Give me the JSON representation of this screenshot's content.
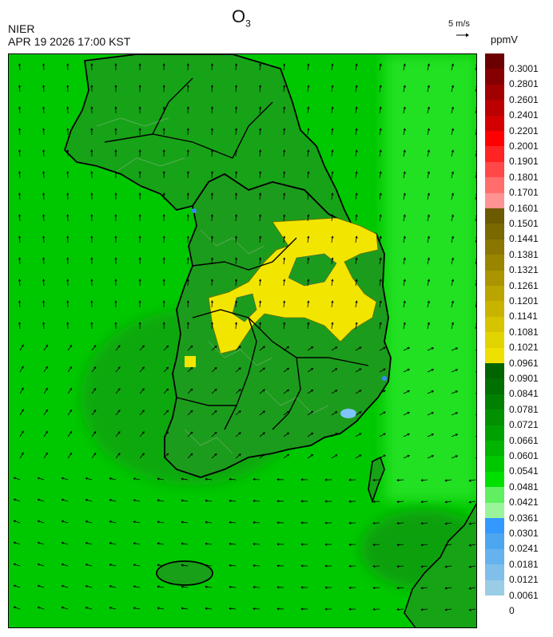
{
  "header": {
    "title_main": "O",
    "title_sub": "3",
    "agency": "NIER",
    "timestamp": "APR 19 2026 17:00 KST",
    "wind_reference": "5 m/s",
    "unit": "ppmV"
  },
  "legend": {
    "bins": [
      {
        "label": "0.3001",
        "color": "#6b0000"
      },
      {
        "label": "0.2801",
        "color": "#850000"
      },
      {
        "label": "0.2601",
        "color": "#a00000"
      },
      {
        "label": "0.2401",
        "color": "#ba0000"
      },
      {
        "label": "0.2201",
        "color": "#d40000"
      },
      {
        "label": "0.2001",
        "color": "#ff0000"
      },
      {
        "label": "0.1901",
        "color": "#ff2424"
      },
      {
        "label": "0.1801",
        "color": "#ff4848"
      },
      {
        "label": "0.1701",
        "color": "#ff6d6d"
      },
      {
        "label": "0.1601",
        "color": "#ff9292"
      },
      {
        "label": "0.1501",
        "color": "#6b5a00"
      },
      {
        "label": "0.1441",
        "color": "#7a6800"
      },
      {
        "label": "0.1381",
        "color": "#8a7600"
      },
      {
        "label": "0.1321",
        "color": "#9a8500"
      },
      {
        "label": "0.1261",
        "color": "#aa9400"
      },
      {
        "label": "0.1201",
        "color": "#baa400"
      },
      {
        "label": "0.1141",
        "color": "#c8b400"
      },
      {
        "label": "0.1081",
        "color": "#d6c400"
      },
      {
        "label": "0.1021",
        "color": "#e2d400"
      },
      {
        "label": "0.0961",
        "color": "#eee000"
      },
      {
        "label": "0.0901",
        "color": "#006400"
      },
      {
        "label": "0.0841",
        "color": "#007000"
      },
      {
        "label": "0.0781",
        "color": "#008000"
      },
      {
        "label": "0.0721",
        "color": "#009000"
      },
      {
        "label": "0.0661",
        "color": "#00a000"
      },
      {
        "label": "0.0601",
        "color": "#00b400"
      },
      {
        "label": "0.0541",
        "color": "#00c800"
      },
      {
        "label": "0.0481",
        "color": "#00e000"
      },
      {
        "label": "0.0421",
        "color": "#60ef60"
      },
      {
        "label": "0.0361",
        "color": "#9af59a"
      },
      {
        "label": "0.0301",
        "color": "#3399ff"
      },
      {
        "label": "0.0241",
        "color": "#4da6f0"
      },
      {
        "label": "0.0181",
        "color": "#66b2ee"
      },
      {
        "label": "0.0121",
        "color": "#80bfea"
      },
      {
        "label": "0.0061",
        "color": "#9acce6"
      },
      {
        "label": "0",
        "color": ""
      }
    ]
  },
  "colors": {
    "sea_background": "#00c800",
    "land_base": "#1f9a1f",
    "high_ozone": "#f2e600",
    "low_ozone": "#3a8aff",
    "boundary": "#000000"
  }
}
